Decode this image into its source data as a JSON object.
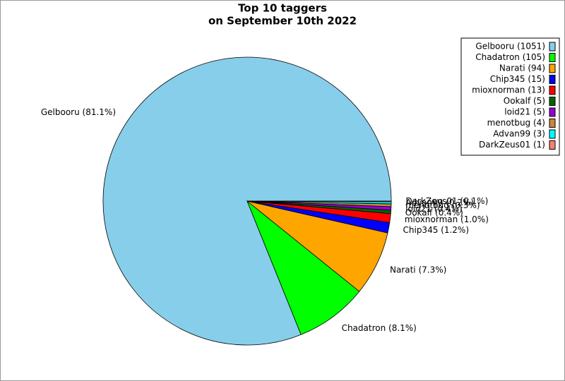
{
  "chart_data": {
    "type": "pie",
    "title": [
      "Top 10 taggers",
      "on September 10th 2022"
    ],
    "categories": [
      "Gelbooru",
      "Chadatron",
      "Narati",
      "Chip345",
      "mioxnorman",
      "Ookalf",
      "loid21",
      "menotbug",
      "Advan99",
      "DarkZeus01"
    ],
    "values": [
      1051,
      105,
      94,
      15,
      13,
      5,
      5,
      4,
      3,
      1
    ],
    "value_labels": [
      "Gelbooru (81.1%)",
      "Chadatron (8.1%)",
      "Narati (7.3%)",
      "Chip345 (1.2%)",
      "mioxnorman (1.0%)",
      "Ookalf (0.4%)",
      "loid21 (0.4%)",
      "menotbug (0.3%)",
      "Advan99 (0.2%)",
      "DarkZeus01 (0.1%)"
    ],
    "legend_labels": [
      "Gelbooru (1051)",
      "Chadatron (105)",
      "Narati (94)",
      "Chip345 (15)",
      "mioxnorman (13)",
      "Ookalf (5)",
      "loid21 (5)",
      "menotbug (4)",
      "Advan99 (3)",
      "DarkZeus01 (1)"
    ],
    "colors": [
      "#87ceeb",
      "#00ff00",
      "#ffa500",
      "#0000ff",
      "#ff0000",
      "#006400",
      "#9400d3",
      "#cd853f",
      "#00ffff",
      "#fa8072"
    ],
    "legend_position": "upper right"
  }
}
